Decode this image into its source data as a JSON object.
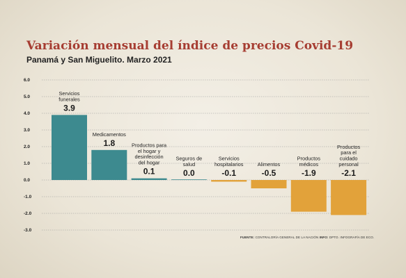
{
  "header": {
    "title": "Variación mensual del índice de precios Covid-19",
    "subtitle": "Panamá y San Miguelito. Marzo 2021"
  },
  "source": {
    "fuente_label": "FUENTE:",
    "fuente_text": "CONTRALORÍA GENERAL DE LA NACIÓN",
    "info_label": "INFO:",
    "info_text": "DPTO. INFOGRAFÍA DE ECO."
  },
  "colors": {
    "positive": "#3d8a8f",
    "negative": "#e2a23a",
    "title": "#a63d32",
    "grid": "#9a9a9a"
  },
  "chart_data": {
    "type": "bar",
    "categories": [
      [
        "Servicios",
        "funerales"
      ],
      [
        "Medicamentos"
      ],
      [
        "Productos para",
        "el hogar y",
        "desinfección",
        "del hogar"
      ],
      [
        "Seguros de",
        "salud"
      ],
      [
        "Servicios",
        "hospitalarios"
      ],
      [
        "Alimentos"
      ],
      [
        "Productos",
        "médicos"
      ],
      [
        "Productos",
        "para el",
        "cuidado",
        "personal"
      ]
    ],
    "values": [
      3.9,
      1.8,
      0.1,
      0.0,
      -0.1,
      -0.5,
      -1.9,
      -2.1
    ],
    "value_labels": [
      "3.9",
      "1.8",
      "0.1",
      "0.0",
      "-0.1",
      "-0.5",
      "-1.9",
      "-2.1"
    ],
    "yticks": [
      "6.0",
      "5.0",
      "4.0",
      "3.0",
      "2.0",
      "1.0",
      "0.0",
      "-1.0",
      "-2.0",
      "-3.0"
    ],
    "ylim": [
      -3,
      6
    ],
    "grid": true,
    "legend": "none"
  }
}
